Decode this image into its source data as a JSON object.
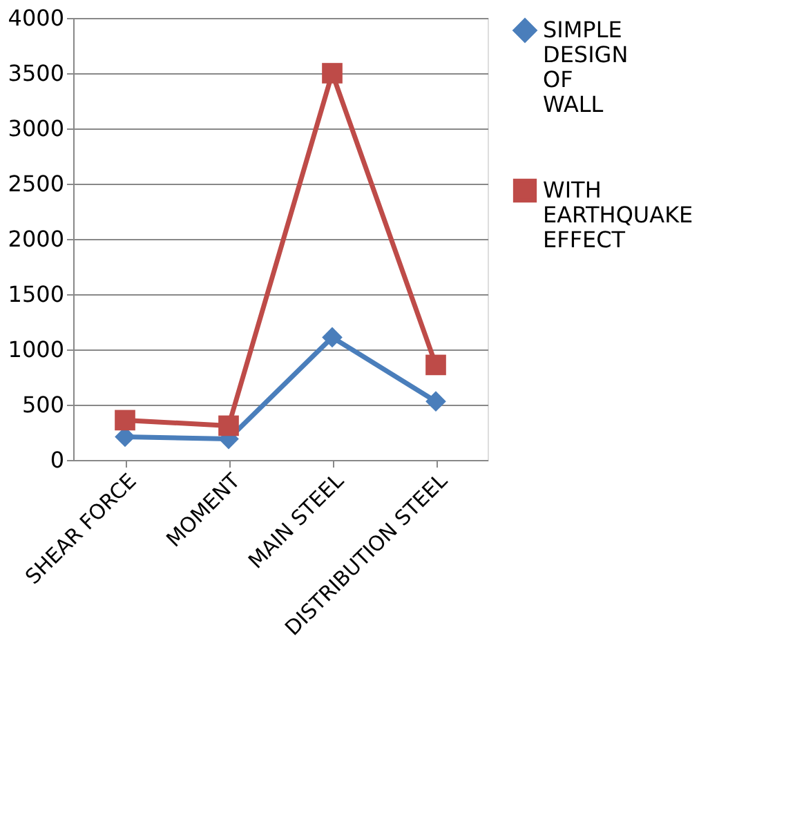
{
  "chart_data": {
    "type": "line",
    "categories": [
      "SHEAR FORCE",
      "MOMENT",
      "MAIN STEEL",
      "DISTRIBUTION STEEL"
    ],
    "series": [
      {
        "name": "SIMPLE DESIGN OF WALL",
        "color": "#4a7ebb",
        "marker": "diamond",
        "values": [
          210,
          190,
          1110,
          530
        ]
      },
      {
        "name": "WITH EARTHQUAKE EFFECT",
        "color": "#be4b48",
        "marker": "square",
        "values": [
          360,
          310,
          3500,
          860
        ]
      }
    ],
    "ylim": [
      0,
      4000
    ],
    "yticks": [
      0,
      500,
      1000,
      1500,
      2000,
      2500,
      3000,
      3500,
      4000
    ],
    "grid": "y",
    "legend": "right",
    "line_style": "solid"
  }
}
